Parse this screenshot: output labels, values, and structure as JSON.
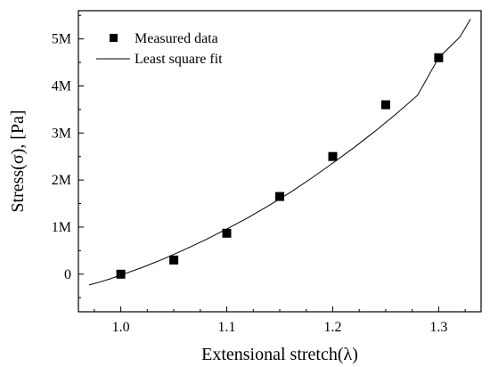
{
  "chart_data": {
    "type": "scatter",
    "xlabel": "Extensional stretch(λ)",
    "ylabel": "Stress(σ), [Pa]",
    "xlim": [
      0.96,
      1.34
    ],
    "ylim": [
      -0.8,
      5.6
    ],
    "y_unit_suffix": "M",
    "x_ticks": [
      1.0,
      1.1,
      1.2,
      1.3
    ],
    "x_tick_labels": [
      "1.0",
      "1.1",
      "1.2",
      "1.3"
    ],
    "y_ticks": [
      0,
      1,
      2,
      3,
      4,
      5
    ],
    "y_tick_labels": [
      "0",
      "1M",
      "2M",
      "3M",
      "4M",
      "5M"
    ],
    "grid": false,
    "legend_position": "top-left",
    "series": [
      {
        "name": "Measured data",
        "kind": "scatter",
        "marker": "square",
        "color": "#000000",
        "x": [
          1.0,
          1.05,
          1.1,
          1.15,
          1.2,
          1.25,
          1.3
        ],
        "y": [
          0.0,
          0.3,
          0.87,
          1.65,
          2.5,
          3.6,
          4.6
        ]
      },
      {
        "name": "Least square fit",
        "kind": "line",
        "color": "#000000",
        "x": [
          0.97,
          0.98,
          0.99,
          1.0,
          1.02,
          1.04,
          1.06,
          1.08,
          1.1,
          1.12,
          1.14,
          1.16,
          1.18,
          1.2,
          1.22,
          1.24,
          1.26,
          1.28,
          1.3,
          1.32,
          1.33
        ],
        "y": [
          -0.23,
          -0.17,
          -0.1,
          -0.02,
          0.14,
          0.32,
          0.52,
          0.73,
          0.96,
          1.2,
          1.46,
          1.74,
          2.04,
          2.36,
          2.69,
          3.04,
          3.41,
          3.8,
          4.6,
          5.04,
          5.42
        ]
      }
    ]
  }
}
